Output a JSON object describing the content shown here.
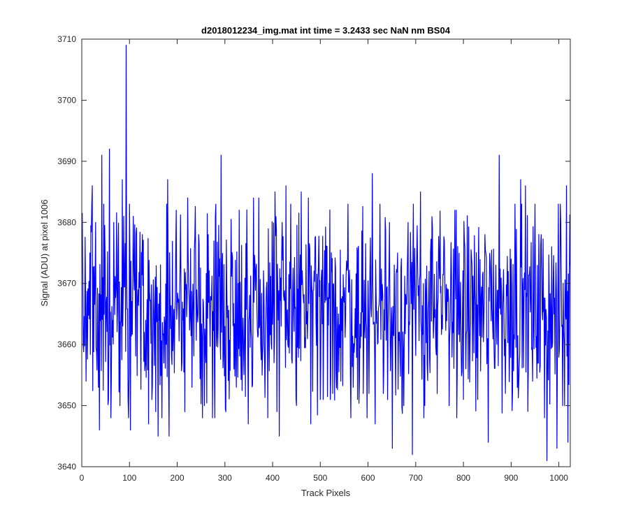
{
  "chart_data": {
    "type": "line",
    "title": "d2018012234_img.mat int time = 3.2433 sec  NaN nm BS04",
    "xlabel": "Track Pixels",
    "ylabel": "Signal (ADU) at pixel 1006",
    "xlim": [
      0,
      1024
    ],
    "ylim": [
      3640,
      3710
    ],
    "x_ticks": [
      0,
      100,
      200,
      300,
      400,
      500,
      600,
      700,
      800,
      900,
      1000
    ],
    "x_tick_labels": [
      "0",
      "100",
      "200",
      "300",
      "400",
      "500",
      "600",
      "700",
      "800",
      "900",
      "1000"
    ],
    "y_ticks": [
      3640,
      3650,
      3660,
      3670,
      3680,
      3690,
      3700,
      3710
    ],
    "y_tick_labels": [
      "3640",
      "3650",
      "3660",
      "3670",
      "3680",
      "3690",
      "3700",
      "3710"
    ],
    "grid": false,
    "box": true,
    "series_color": "#0000ff",
    "x_step": 1,
    "x_count": 1024,
    "mean_level": 3666,
    "spikes": [
      {
        "x": 3,
        "y": 3660
      },
      {
        "x": 9,
        "y": 3654
      },
      {
        "x": 17,
        "y": 3675
      },
      {
        "x": 22,
        "y": 3686
      },
      {
        "x": 29,
        "y": 3680
      },
      {
        "x": 35,
        "y": 3653
      },
      {
        "x": 37,
        "y": 3646
      },
      {
        "x": 42,
        "y": 3691
      },
      {
        "x": 56,
        "y": 3651
      },
      {
        "x": 58,
        "y": 3692
      },
      {
        "x": 61,
        "y": 3648
      },
      {
        "x": 67,
        "y": 3680
      },
      {
        "x": 80,
        "y": 3650
      },
      {
        "x": 85,
        "y": 3687
      },
      {
        "x": 88,
        "y": 3681
      },
      {
        "x": 93,
        "y": 3709
      },
      {
        "x": 102,
        "y": 3646
      },
      {
        "x": 108,
        "y": 3681
      },
      {
        "x": 127,
        "y": 3678
      },
      {
        "x": 140,
        "y": 3647
      },
      {
        "x": 155,
        "y": 3649
      },
      {
        "x": 160,
        "y": 3645
      },
      {
        "x": 178,
        "y": 3683
      },
      {
        "x": 180,
        "y": 3687
      },
      {
        "x": 183,
        "y": 3645
      },
      {
        "x": 198,
        "y": 3682
      },
      {
        "x": 216,
        "y": 3649
      },
      {
        "x": 222,
        "y": 3684
      },
      {
        "x": 231,
        "y": 3653
      },
      {
        "x": 245,
        "y": 3678
      },
      {
        "x": 257,
        "y": 3650
      },
      {
        "x": 274,
        "y": 3648
      },
      {
        "x": 280,
        "y": 3681
      },
      {
        "x": 292,
        "y": 3691
      },
      {
        "x": 302,
        "y": 3649
      },
      {
        "x": 319,
        "y": 3656
      },
      {
        "x": 330,
        "y": 3682
      },
      {
        "x": 349,
        "y": 3647
      },
      {
        "x": 360,
        "y": 3684
      },
      {
        "x": 371,
        "y": 3684
      },
      {
        "x": 378,
        "y": 3655
      },
      {
        "x": 390,
        "y": 3648
      },
      {
        "x": 405,
        "y": 3685
      },
      {
        "x": 409,
        "y": 3649
      },
      {
        "x": 414,
        "y": 3645
      },
      {
        "x": 420,
        "y": 3680
      },
      {
        "x": 428,
        "y": 3686
      },
      {
        "x": 438,
        "y": 3683
      },
      {
        "x": 450,
        "y": 3650
      },
      {
        "x": 460,
        "y": 3685
      },
      {
        "x": 475,
        "y": 3684
      },
      {
        "x": 480,
        "y": 3647
      },
      {
        "x": 500,
        "y": 3651
      },
      {
        "x": 506,
        "y": 3651
      },
      {
        "x": 521,
        "y": 3651
      },
      {
        "x": 526,
        "y": 3652
      },
      {
        "x": 543,
        "y": 3654
      },
      {
        "x": 558,
        "y": 3683
      },
      {
        "x": 569,
        "y": 3653
      },
      {
        "x": 578,
        "y": 3651
      },
      {
        "x": 590,
        "y": 3652
      },
      {
        "x": 599,
        "y": 3660
      },
      {
        "x": 609,
        "y": 3688
      },
      {
        "x": 615,
        "y": 3647
      },
      {
        "x": 625,
        "y": 3683
      },
      {
        "x": 632,
        "y": 3652
      },
      {
        "x": 645,
        "y": 3680
      },
      {
        "x": 651,
        "y": 3643
      },
      {
        "x": 662,
        "y": 3675
      },
      {
        "x": 675,
        "y": 3650
      },
      {
        "x": 684,
        "y": 3680
      },
      {
        "x": 693,
        "y": 3642
      },
      {
        "x": 704,
        "y": 3673
      },
      {
        "x": 710,
        "y": 3685
      },
      {
        "x": 719,
        "y": 3650
      },
      {
        "x": 731,
        "y": 3675
      },
      {
        "x": 745,
        "y": 3652
      },
      {
        "x": 760,
        "y": 3677
      },
      {
        "x": 770,
        "y": 3650
      },
      {
        "x": 782,
        "y": 3682
      },
      {
        "x": 785,
        "y": 3682
      },
      {
        "x": 800,
        "y": 3651
      },
      {
        "x": 818,
        "y": 3673
      },
      {
        "x": 830,
        "y": 3651
      },
      {
        "x": 845,
        "y": 3678
      },
      {
        "x": 852,
        "y": 3644
      },
      {
        "x": 868,
        "y": 3673
      },
      {
        "x": 875,
        "y": 3691
      },
      {
        "x": 888,
        "y": 3652
      },
      {
        "x": 900,
        "y": 3674
      },
      {
        "x": 908,
        "y": 3683
      },
      {
        "x": 920,
        "y": 3687
      },
      {
        "x": 930,
        "y": 3686
      },
      {
        "x": 945,
        "y": 3654
      },
      {
        "x": 958,
        "y": 3678
      },
      {
        "x": 970,
        "y": 3648
      },
      {
        "x": 975,
        "y": 3641
      },
      {
        "x": 985,
        "y": 3676
      },
      {
        "x": 996,
        "y": 3643
      },
      {
        "x": 1004,
        "y": 3680
      },
      {
        "x": 1008,
        "y": 3650
      },
      {
        "x": 1012,
        "y": 3650
      },
      {
        "x": 1016,
        "y": 3686
      },
      {
        "x": 1019,
        "y": 3644
      },
      {
        "x": 1022,
        "y": 3671
      }
    ]
  }
}
